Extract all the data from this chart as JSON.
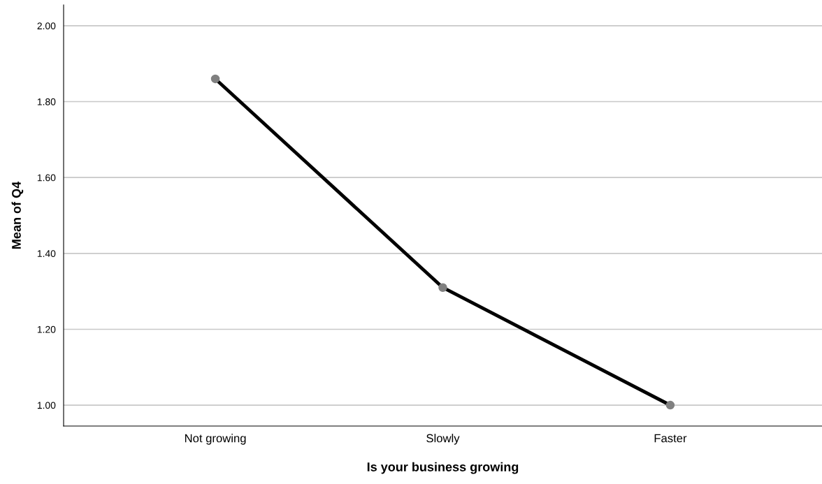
{
  "chart_data": {
    "type": "line",
    "xlabel": "Is your business growing",
    "ylabel": "Mean of Q4",
    "categories": [
      "Not growing",
      "Slowly",
      "Faster"
    ],
    "series": [
      {
        "color": "#000000",
        "values": [
          1.86,
          1.31,
          1.0
        ]
      }
    ],
    "ylim": [
      0.945,
      2.055
    ],
    "yticks": [
      {
        "value": 1.0,
        "label": "1.00"
      },
      {
        "value": 1.2,
        "label": "1.20"
      },
      {
        "value": 1.4,
        "label": "1.40"
      },
      {
        "value": 1.6,
        "label": "1.60"
      },
      {
        "value": 1.8,
        "label": "1.80"
      },
      {
        "value": 2.0,
        "label": "2.00"
      }
    ],
    "grid": "y",
    "marker": "circle",
    "line_style": "solid"
  }
}
